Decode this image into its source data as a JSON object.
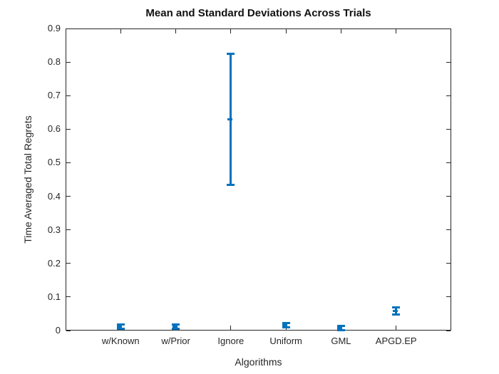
{
  "chart_data": {
    "type": "errorbar",
    "title": "Mean and Standard Deviations Across Trials",
    "xlabel": "Algorithms",
    "ylabel": "Time Averaged Total Regrets",
    "categories": [
      "w/Known",
      "w/Prior",
      "Ignore",
      "Uniform",
      "GML",
      "APGD.EP"
    ],
    "series": [
      {
        "name": "Time Averaged Total Regrets",
        "means": [
          0.012,
          0.012,
          0.63,
          0.016,
          0.007,
          0.058
        ],
        "stds": [
          0.006,
          0.006,
          0.195,
          0.007,
          0.006,
          0.011
        ]
      }
    ],
    "ylim": [
      0,
      0.9
    ],
    "ytick_labels": [
      "0",
      "0.1",
      "0.2",
      "0.3",
      "0.4",
      "0.5",
      "0.6",
      "0.7",
      "0.8",
      "0.9"
    ],
    "ytick_values": [
      0,
      0.1,
      0.2,
      0.3,
      0.4,
      0.5,
      0.6,
      0.7,
      0.8,
      0.9
    ],
    "grid": false,
    "legend": null,
    "marker": "dot-at-mean",
    "colors": {
      "errorbar": "#0072BD",
      "axis": "#262626",
      "title_text": "#111111"
    }
  }
}
